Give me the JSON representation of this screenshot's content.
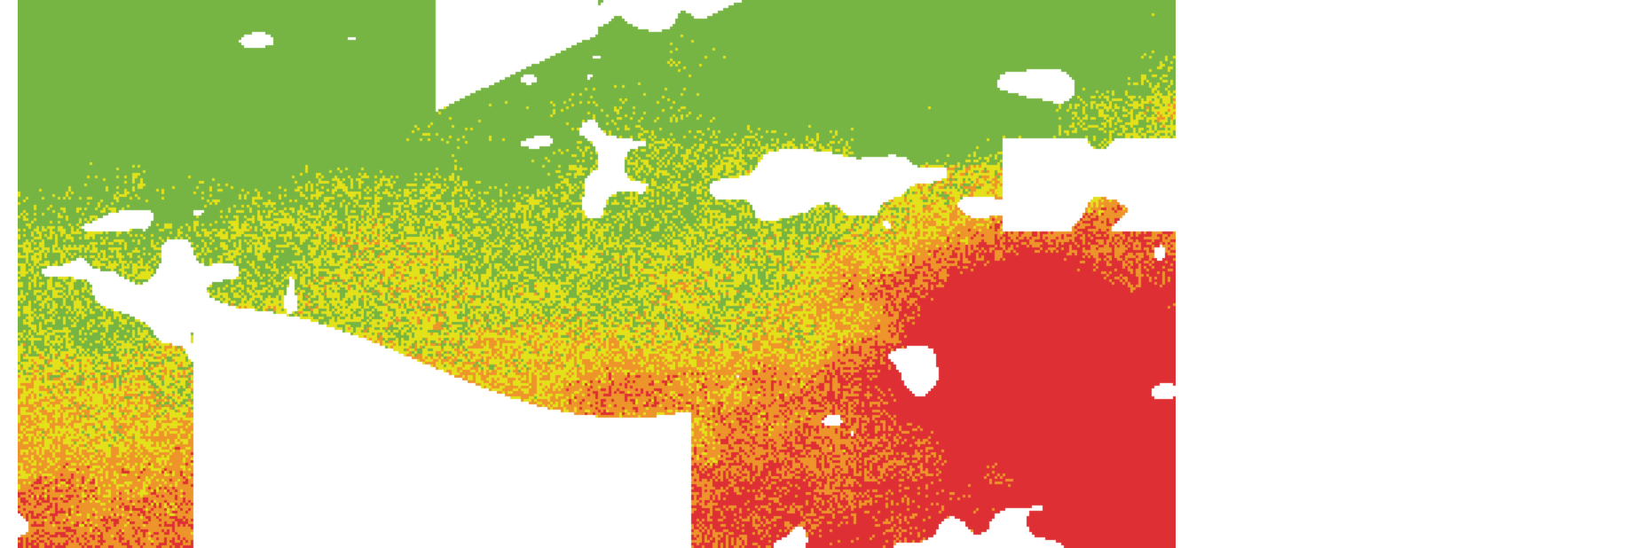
{
  "map": {
    "type": "raster-classified",
    "classes": [
      {
        "color": "#76b543"
      },
      {
        "color": "#e3e11a"
      },
      {
        "color": "#ed942b"
      },
      {
        "color": "#de3034"
      }
    ],
    "nodata_color": "#ffffff"
  }
}
